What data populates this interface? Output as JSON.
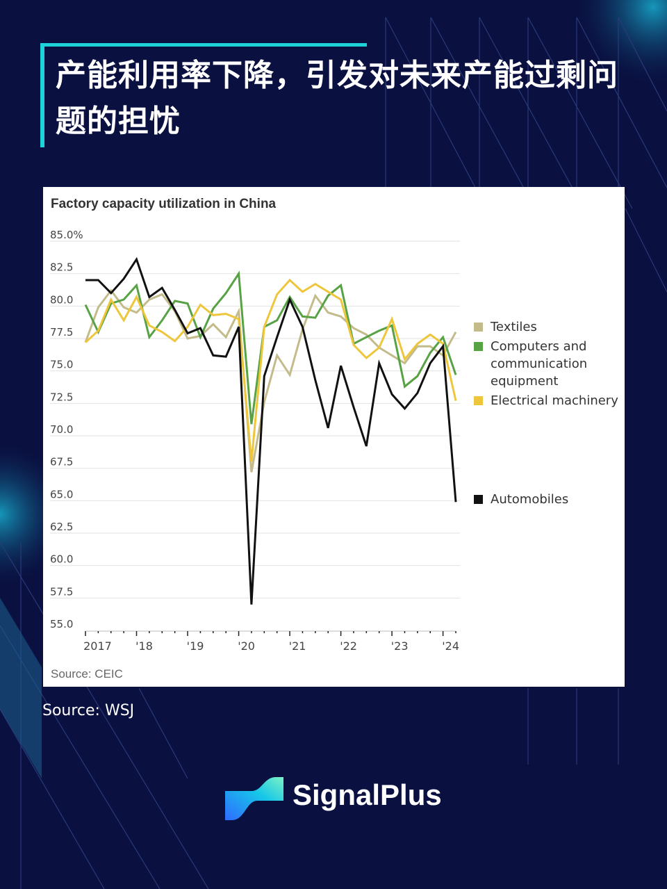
{
  "header": {
    "title": "产能利用率下降，引发对未来产能过剩问题的担忧"
  },
  "footer": {
    "source": "Source: WSJ",
    "brand": "SignalPlus"
  },
  "colors": {
    "background": "#0a1040",
    "accent": "#1fd1d8"
  },
  "chart_data": {
    "type": "line",
    "title": "Factory capacity utilization in China",
    "source": "Source: CEIC",
    "ylim": [
      55.0,
      85.0
    ],
    "y_ticks": [
      "85.0%",
      "82.5",
      "80.0",
      "77.5",
      "75.0",
      "72.5",
      "70.0",
      "67.5",
      "65.0",
      "62.5",
      "60.0",
      "57.5",
      "55.0"
    ],
    "y_tick_values": [
      85,
      82.5,
      80,
      77.5,
      75,
      72.5,
      70,
      67.5,
      65,
      62.5,
      60,
      57.5,
      55
    ],
    "x_ticks": [
      "2017",
      "'18",
      "'19",
      "'20",
      "'21",
      "'22",
      "'23",
      "'24"
    ],
    "x": [
      "2016Q4",
      "2017Q1",
      "2017Q2",
      "2017Q3",
      "2017Q4",
      "2018Q1",
      "2018Q2",
      "2018Q3",
      "2018Q4",
      "2019Q1",
      "2019Q2",
      "2019Q3",
      "2019Q4",
      "2020Q1",
      "2020Q2",
      "2020Q3",
      "2020Q4",
      "2021Q1",
      "2021Q2",
      "2021Q3",
      "2021Q4",
      "2022Q1",
      "2022Q2",
      "2022Q3",
      "2022Q4",
      "2023Q1",
      "2023Q2",
      "2023Q3",
      "2023Q4",
      "2024Q1"
    ],
    "grid": true,
    "legend_placement": "right",
    "series": [
      {
        "name": "Textiles",
        "color": "#c3bb8a",
        "values": [
          77.2,
          79.9,
          81.2,
          79.9,
          79.5,
          80.5,
          80.9,
          79.6,
          77.5,
          77.7,
          78.6,
          77.6,
          79.6,
          67.2,
          72.6,
          76.2,
          74.7,
          78.2,
          80.8,
          79.5,
          79.2,
          78.3,
          77.8,
          76.8,
          76.2,
          75.6,
          76.9,
          76.9,
          76.2,
          78.0
        ]
      },
      {
        "name": "Computers and communication equipment",
        "color": "#57a244",
        "values": [
          80.1,
          78.0,
          80.2,
          80.5,
          81.6,
          77.6,
          78.9,
          80.4,
          80.2,
          77.6,
          79.8,
          81.0,
          82.5,
          70.9,
          78.4,
          78.9,
          80.7,
          79.2,
          79.1,
          80.8,
          81.6,
          77.1,
          77.6,
          78.1,
          78.5,
          73.8,
          74.6,
          76.4,
          77.6,
          74.7
        ]
      },
      {
        "name": "Electrical machinery",
        "color": "#eec63c",
        "values": [
          77.2,
          78.1,
          80.5,
          78.9,
          80.7,
          78.5,
          78.0,
          77.3,
          78.4,
          80.1,
          79.3,
          79.4,
          79.0,
          68.0,
          78.4,
          80.9,
          82.0,
          81.1,
          81.7,
          81.1,
          80.5,
          77.0,
          76.0,
          76.8,
          79.0,
          75.9,
          77.1,
          77.8,
          77.1,
          72.7
        ]
      },
      {
        "name": "Automobiles",
        "color": "#111111",
        "values": [
          82.0,
          82.0,
          81.0,
          82.1,
          83.6,
          80.7,
          81.4,
          79.7,
          77.9,
          78.3,
          76.2,
          76.1,
          78.4,
          57.0,
          74.6,
          77.6,
          80.5,
          78.4,
          74.3,
          70.6,
          75.4,
          72.2,
          69.2,
          75.6,
          73.2,
          72.1,
          73.3,
          75.6,
          76.9,
          64.9
        ]
      }
    ]
  }
}
